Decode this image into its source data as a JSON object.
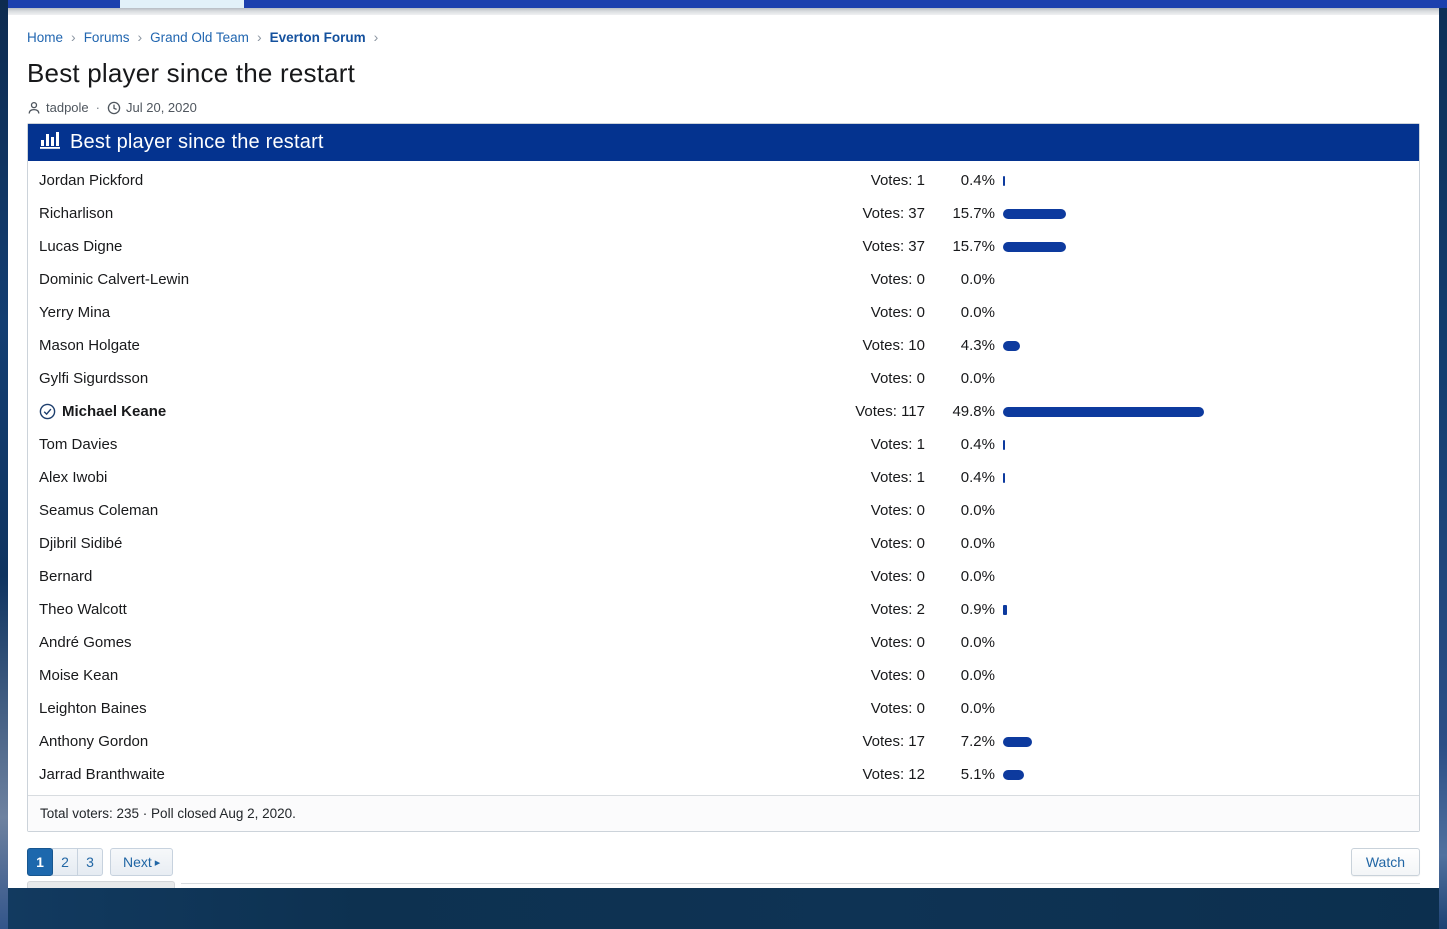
{
  "page": {
    "breadcrumb": [
      "Home",
      "Forums",
      "Grand Old Team",
      "Everton Forum"
    ],
    "title": "Best player since the restart",
    "author": "tadpole",
    "date": "Jul 20, 2020"
  },
  "poll": {
    "title": "Best player since the restart",
    "votes_prefix": "Votes:",
    "options": [
      {
        "name": "Jordan Pickford",
        "votes": 1,
        "pct": 0.4,
        "selected": false
      },
      {
        "name": "Richarlison",
        "votes": 37,
        "pct": 15.7,
        "selected": false
      },
      {
        "name": "Lucas Digne",
        "votes": 37,
        "pct": 15.7,
        "selected": false
      },
      {
        "name": "Dominic Calvert-Lewin",
        "votes": 0,
        "pct": 0.0,
        "selected": false
      },
      {
        "name": "Yerry Mina",
        "votes": 0,
        "pct": 0.0,
        "selected": false
      },
      {
        "name": "Mason Holgate",
        "votes": 10,
        "pct": 4.3,
        "selected": false
      },
      {
        "name": "Gylfi Sigurdsson",
        "votes": 0,
        "pct": 0.0,
        "selected": false
      },
      {
        "name": "Michael Keane",
        "votes": 117,
        "pct": 49.8,
        "selected": true
      },
      {
        "name": "Tom Davies",
        "votes": 1,
        "pct": 0.4,
        "selected": false
      },
      {
        "name": "Alex Iwobi",
        "votes": 1,
        "pct": 0.4,
        "selected": false
      },
      {
        "name": "Seamus Coleman",
        "votes": 0,
        "pct": 0.0,
        "selected": false
      },
      {
        "name": "Djibril Sidibé",
        "votes": 0,
        "pct": 0.0,
        "selected": false
      },
      {
        "name": "Bernard",
        "votes": 0,
        "pct": 0.0,
        "selected": false
      },
      {
        "name": "Theo Walcott",
        "votes": 2,
        "pct": 0.9,
        "selected": false
      },
      {
        "name": "André Gomes",
        "votes": 0,
        "pct": 0.0,
        "selected": false
      },
      {
        "name": "Moise Kean",
        "votes": 0,
        "pct": 0.0,
        "selected": false
      },
      {
        "name": "Leighton Baines",
        "votes": 0,
        "pct": 0.0,
        "selected": false
      },
      {
        "name": "Anthony Gordon",
        "votes": 17,
        "pct": 7.2,
        "selected": false
      },
      {
        "name": "Jarrad Branthwaite",
        "votes": 12,
        "pct": 5.1,
        "selected": false
      }
    ],
    "footer": "Total voters: 235 · Poll closed Aug 2, 2020."
  },
  "pagination": {
    "pages": [
      "1",
      "2",
      "3"
    ],
    "current": "1",
    "next_label": "Next"
  },
  "watch_label": "Watch",
  "icons": {
    "crumb_separator": "›",
    "next_arrow": "▸",
    "meta_dot": "·"
  },
  "colors": {
    "poll_header_blue": "#04338f",
    "bar_blue": "#0d3a9e",
    "link_blue": "#2166b0",
    "active_page_blue": "#1d68ad",
    "topbar_blue": "#1c40ae",
    "background_navy": "#0d3150"
  }
}
